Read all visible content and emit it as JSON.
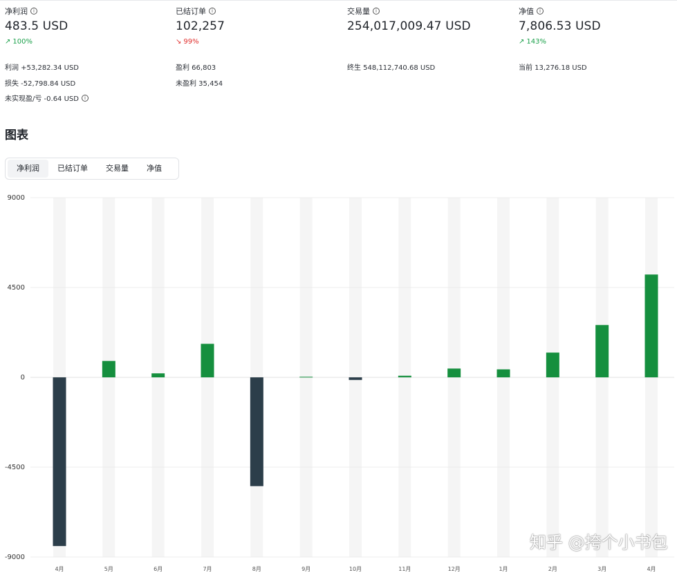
{
  "stats": [
    {
      "label": "净利润",
      "value": "483.5 USD",
      "change": "100%",
      "direction": "up",
      "details": [
        "利润 +53,282.34 USD",
        "损失 -52,798.84 USD",
        "未实现盈/亏 -0.64 USD"
      ]
    },
    {
      "label": "已结订单",
      "value": "102,257",
      "change": "99%",
      "direction": "down",
      "details": [
        "盈利 66,803",
        "未盈利 35,454"
      ]
    },
    {
      "label": "交易量",
      "value": "254,017,009.47 USD",
      "change": "",
      "direction": "",
      "details": [
        "终生 548,112,740.68 USD"
      ]
    },
    {
      "label": "净值",
      "value": "7,806.53 USD",
      "change": "143%",
      "direction": "up",
      "details": [
        "当前 13,276.18 USD"
      ]
    }
  ],
  "section_title": "图表",
  "tabs": [
    "净利润",
    "已结订单",
    "交易量",
    "净值"
  ],
  "active_tab": 0,
  "watermark": "知乎 @挎个小书包",
  "icons": {
    "info": "info-icon",
    "up": "arrow-up-right-icon",
    "down": "arrow-down-right-icon"
  },
  "colors": {
    "positive_bar": "#158f3e",
    "negative_bar": "#2c3e4a",
    "up_text": "#1aa04a",
    "down_text": "#e0302e"
  },
  "chart_data": {
    "type": "bar",
    "categories": [
      "4月",
      "5月",
      "6月",
      "7月",
      "8月",
      "9月",
      "10月",
      "11月",
      "12月",
      "1月",
      "2月",
      "3月",
      "4月"
    ],
    "values": [
      -8450,
      820,
      200,
      1680,
      -5450,
      30,
      -130,
      80,
      440,
      400,
      1240,
      2620,
      5150
    ],
    "y_ticks": [
      9000,
      4500,
      0,
      -4500,
      -9000
    ],
    "ylim": [
      -9000,
      9000
    ],
    "title": "",
    "xlabel": "",
    "ylabel": "",
    "grid": true
  }
}
